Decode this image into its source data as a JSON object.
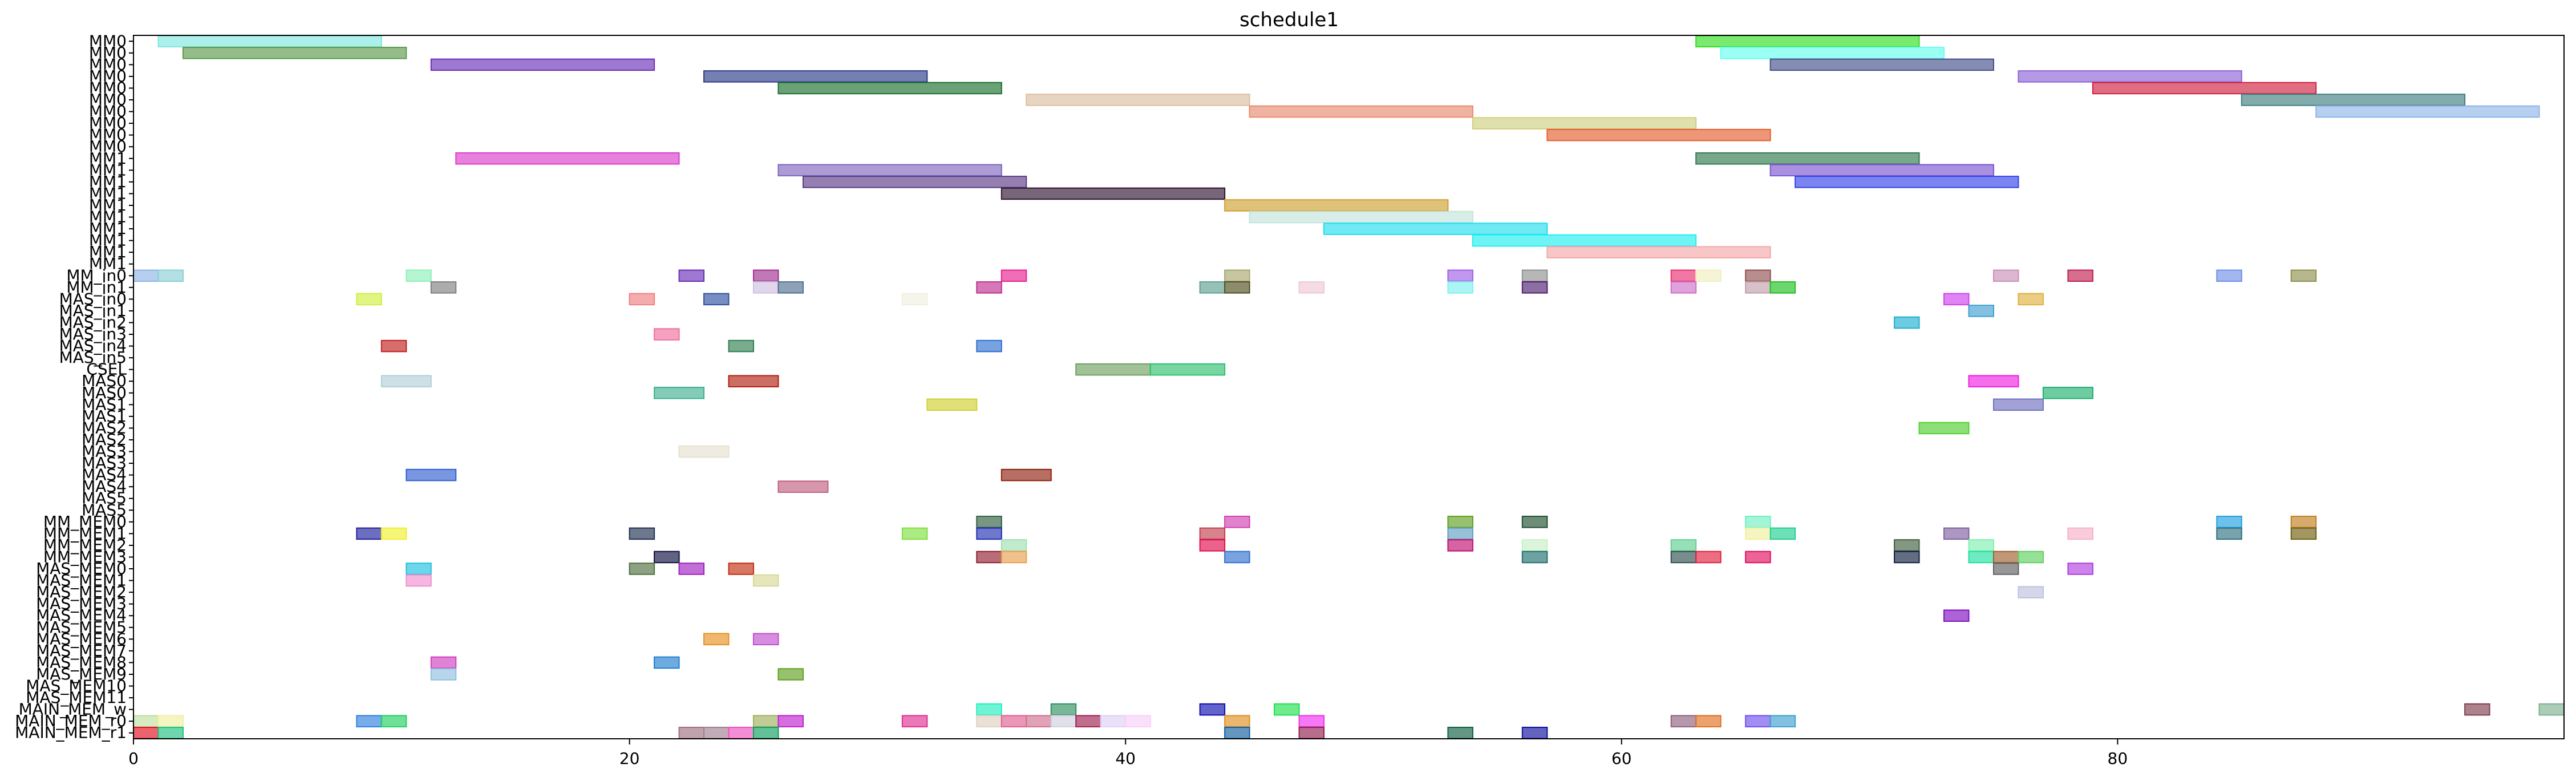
{
  "chart_data": {
    "type": "gantt",
    "title": "schedule1",
    "xlabel": "",
    "ylabel": "",
    "xlim": [
      0,
      98
    ],
    "xticks": [
      0,
      20,
      40,
      60,
      80
    ],
    "grid": false,
    "rows": [
      "MM0",
      "MM0",
      "MM0",
      "MM0",
      "MM0",
      "MM0",
      "MM0",
      "MM0",
      "MM0",
      "MM0",
      "MM1",
      "MM1",
      "MM1",
      "MM1",
      "MM1",
      "MM1",
      "MM1",
      "MM1",
      "MM1",
      "MM1",
      "MM_in0",
      "MM_in1",
      "MAS_in0",
      "MAS_in1",
      "MAS_in2",
      "MAS_in3",
      "MAS_in4",
      "MAS_in5",
      "CSEL",
      "MAS0",
      "MAS0",
      "MAS1",
      "MAS1",
      "MAS2",
      "MAS2",
      "MAS3",
      "MAS3",
      "MAS4",
      "MAS4",
      "MAS5",
      "MAS5",
      "MM_MEM0",
      "MM_MEM1",
      "MM_MEM2",
      "MM_MEM3",
      "MAS_MEM0",
      "MAS_MEM1",
      "MAS_MEM2",
      "MAS_MEM3",
      "MAS_MEM4",
      "MAS_MEM5",
      "MAS_MEM6",
      "MAS_MEM7",
      "MAS_MEM8",
      "MAS_MEM9",
      "MAS_MEM10",
      "MAS_MEM11",
      "MAIN_MEM_w",
      "MAIN_MEM_r0",
      "MAIN_MEM_r1"
    ],
    "tasks": [
      {
        "row": 0,
        "start": 1,
        "end": 10,
        "color": "#7fe6e0"
      },
      {
        "row": 0,
        "start": 63,
        "end": 72,
        "color": "#33dd22"
      },
      {
        "row": 1,
        "start": 2,
        "end": 11,
        "color": "#5a9a4c"
      },
      {
        "row": 1,
        "start": 64,
        "end": 73,
        "color": "#66ffee"
      },
      {
        "row": 2,
        "start": 12,
        "end": 21,
        "color": "#6a2fb8"
      },
      {
        "row": 2,
        "start": 66,
        "end": 75,
        "color": "#44508a"
      },
      {
        "row": 3,
        "start": 23,
        "end": 32,
        "color": "#2c3a88"
      },
      {
        "row": 3,
        "start": 76,
        "end": 85,
        "color": "#8d62d6"
      },
      {
        "row": 4,
        "start": 26,
        "end": 35,
        "color": "#1b6e2e"
      },
      {
        "row": 4,
        "start": 79,
        "end": 88,
        "color": "#d02040"
      },
      {
        "row": 5,
        "start": 36,
        "end": 45,
        "color": "#dcbf9f"
      },
      {
        "row": 5,
        "start": 85,
        "end": 94,
        "color": "#3f8080"
      },
      {
        "row": 6,
        "start": 45,
        "end": 54,
        "color": "#e98a6f"
      },
      {
        "row": 6,
        "start": 88,
        "end": 97,
        "color": "#8fb4e6"
      },
      {
        "row": 7,
        "start": 54,
        "end": 63,
        "color": "#cfcf80"
      },
      {
        "row": 8,
        "start": 57,
        "end": 66,
        "color": "#e45f30"
      },
      {
        "row": 10,
        "start": 13,
        "end": 22,
        "color": "#dc3ccd"
      },
      {
        "row": 10,
        "start": 63,
        "end": 72,
        "color": "#2f7a4f"
      },
      {
        "row": 11,
        "start": 26,
        "end": 35,
        "color": "#8066be"
      },
      {
        "row": 11,
        "start": 66,
        "end": 75,
        "color": "#7c55d0"
      },
      {
        "row": 12,
        "start": 27,
        "end": 36,
        "color": "#5a3a86"
      },
      {
        "row": 12,
        "start": 67,
        "end": 76,
        "color": "#3344e8"
      },
      {
        "row": 13,
        "start": 35,
        "end": 44,
        "color": "#2e1430"
      },
      {
        "row": 14,
        "start": 44,
        "end": 53,
        "color": "#cfa030"
      },
      {
        "row": 15,
        "start": 45,
        "end": 54,
        "color": "#c4e4dc"
      },
      {
        "row": 16,
        "start": 48,
        "end": 57,
        "color": "#22ddee"
      },
      {
        "row": 17,
        "start": 54,
        "end": 63,
        "color": "#22eef0"
      },
      {
        "row": 18,
        "start": 57,
        "end": 66,
        "color": "#f4a8a8"
      },
      {
        "row": 20,
        "start": 0,
        "end": 1,
        "color": "#8fb4e6"
      },
      {
        "row": 20,
        "start": 1,
        "end": 2,
        "color": "#88d0d4"
      },
      {
        "row": 20,
        "start": 11,
        "end": 12,
        "color": "#8ef0b8"
      },
      {
        "row": 20,
        "start": 22,
        "end": 23,
        "color": "#6a2fb8"
      },
      {
        "row": 20,
        "start": 25,
        "end": 26,
        "color": "#a03090"
      },
      {
        "row": 20,
        "start": 35,
        "end": 36,
        "color": "#e82090"
      },
      {
        "row": 20,
        "start": 44,
        "end": 45,
        "color": "#a8a870"
      },
      {
        "row": 20,
        "start": 53,
        "end": 54,
        "color": "#a060e8"
      },
      {
        "row": 20,
        "start": 56,
        "end": 57,
        "color": "#909090"
      },
      {
        "row": 20,
        "start": 62,
        "end": 63,
        "color": "#e83070"
      },
      {
        "row": 20,
        "start": 63,
        "end": 64,
        "color": "#f0f0c0"
      },
      {
        "row": 20,
        "start": 65,
        "end": 66,
        "color": "#905050"
      },
      {
        "row": 20,
        "start": 75,
        "end": 76,
        "color": "#c890b8"
      },
      {
        "row": 20,
        "start": 78,
        "end": 79,
        "color": "#c02050"
      },
      {
        "row": 20,
        "start": 84,
        "end": 85,
        "color": "#7090e8"
      },
      {
        "row": 20,
        "start": 87,
        "end": 88,
        "color": "#909050"
      },
      {
        "row": 21,
        "start": 12,
        "end": 13,
        "color": "#808080"
      },
      {
        "row": 21,
        "start": 25,
        "end": 26,
        "color": "#d0c0e0"
      },
      {
        "row": 21,
        "start": 26,
        "end": 27,
        "color": "#507090"
      },
      {
        "row": 21,
        "start": 34,
        "end": 35,
        "color": "#c03090"
      },
      {
        "row": 21,
        "start": 43,
        "end": 44,
        "color": "#60a090"
      },
      {
        "row": 21,
        "start": 44,
        "end": 45,
        "color": "#505020"
      },
      {
        "row": 21,
        "start": 47,
        "end": 48,
        "color": "#f0c8d8"
      },
      {
        "row": 21,
        "start": 53,
        "end": 54,
        "color": "#80f0f0"
      },
      {
        "row": 21,
        "start": 56,
        "end": 57,
        "color": "#502070"
      },
      {
        "row": 21,
        "start": 62,
        "end": 63,
        "color": "#d070c8"
      },
      {
        "row": 21,
        "start": 65,
        "end": 66,
        "color": "#c0a0a8"
      },
      {
        "row": 21,
        "start": 66,
        "end": 67,
        "color": "#20c020"
      },
      {
        "row": 22,
        "start": 9,
        "end": 10,
        "color": "#d0f040"
      },
      {
        "row": 22,
        "start": 20,
        "end": 21,
        "color": "#f08080"
      },
      {
        "row": 22,
        "start": 23,
        "end": 24,
        "color": "#3050a0"
      },
      {
        "row": 22,
        "start": 31,
        "end": 32,
        "color": "#f0f0e0"
      },
      {
        "row": 22,
        "start": 73,
        "end": 74,
        "color": "#d040f0"
      },
      {
        "row": 22,
        "start": 76,
        "end": 77,
        "color": "#e0b040"
      },
      {
        "row": 23,
        "start": 74,
        "end": 75,
        "color": "#40a0d0"
      },
      {
        "row": 24,
        "start": 71,
        "end": 72,
        "color": "#20b0d0"
      },
      {
        "row": 25,
        "start": 21,
        "end": 22,
        "color": "#f070a0"
      },
      {
        "row": 26,
        "start": 10,
        "end": 11,
        "color": "#c02020"
      },
      {
        "row": 26,
        "start": 24,
        "end": 25,
        "color": "#308050"
      },
      {
        "row": 26,
        "start": 34,
        "end": 35,
        "color": "#3070d0"
      },
      {
        "row": 28,
        "start": 38,
        "end": 41,
        "color": "#70a060"
      },
      {
        "row": 28,
        "start": 41,
        "end": 44,
        "color": "#30c070"
      },
      {
        "row": 29,
        "start": 10,
        "end": 12,
        "color": "#b0d0d8"
      },
      {
        "row": 29,
        "start": 24,
        "end": 26,
        "color": "#b02010"
      },
      {
        "row": 29,
        "start": 74,
        "end": 76,
        "color": "#f020e0"
      },
      {
        "row": 30,
        "start": 21,
        "end": 23,
        "color": "#40b090"
      },
      {
        "row": 30,
        "start": 77,
        "end": 79,
        "color": "#20b070"
      },
      {
        "row": 31,
        "start": 32,
        "end": 34,
        "color": "#d0d030"
      },
      {
        "row": 31,
        "start": 75,
        "end": 77,
        "color": "#7070c0"
      },
      {
        "row": 33,
        "start": 72,
        "end": 74,
        "color": "#50d030"
      },
      {
        "row": 35,
        "start": 22,
        "end": 24,
        "color": "#e8e0d0"
      },
      {
        "row": 37,
        "start": 11,
        "end": 13,
        "color": "#3060d0"
      },
      {
        "row": 37,
        "start": 35,
        "end": 37,
        "color": "#902010"
      },
      {
        "row": 38,
        "start": 26,
        "end": 28,
        "color": "#c06080"
      },
      {
        "row": 41,
        "start": 34,
        "end": 35,
        "color": "#306040"
      },
      {
        "row": 41,
        "start": 44,
        "end": 45,
        "color": "#d040b0"
      },
      {
        "row": 41,
        "start": 53,
        "end": 54,
        "color": "#60a020"
      },
      {
        "row": 41,
        "start": 56,
        "end": 57,
        "color": "#205030"
      },
      {
        "row": 41,
        "start": 65,
        "end": 66,
        "color": "#70f0c0"
      },
      {
        "row": 41,
        "start": 84,
        "end": 85,
        "color": "#20a0e0"
      },
      {
        "row": 41,
        "start": 87,
        "end": 88,
        "color": "#c08020"
      },
      {
        "row": 42,
        "start": 9,
        "end": 10,
        "color": "#2020a0"
      },
      {
        "row": 42,
        "start": 10,
        "end": 11,
        "color": "#f0f030"
      },
      {
        "row": 42,
        "start": 20,
        "end": 21,
        "color": "#203050"
      },
      {
        "row": 42,
        "start": 31,
        "end": 32,
        "color": "#80e040"
      },
      {
        "row": 42,
        "start": 34,
        "end": 35,
        "color": "#2030b0"
      },
      {
        "row": 42,
        "start": 43,
        "end": 44,
        "color": "#c04050"
      },
      {
        "row": 42,
        "start": 53,
        "end": 54,
        "color": "#60a0c0"
      },
      {
        "row": 42,
        "start": 65,
        "end": 66,
        "color": "#f0f0a0"
      },
      {
        "row": 42,
        "start": 66,
        "end": 67,
        "color": "#20d090"
      },
      {
        "row": 42,
        "start": 73,
        "end": 74,
        "color": "#8060a0"
      },
      {
        "row": 42,
        "start": 78,
        "end": 79,
        "color": "#f8b0c8"
      },
      {
        "row": 42,
        "start": 84,
        "end": 85,
        "color": "#307080"
      },
      {
        "row": 42,
        "start": 87,
        "end": 88,
        "color": "#706010"
      },
      {
        "row": 43,
        "start": 35,
        "end": 36,
        "color": "#a0e0b0"
      },
      {
        "row": 43,
        "start": 43,
        "end": 44,
        "color": "#e01050"
      },
      {
        "row": 43,
        "start": 53,
        "end": 54,
        "color": "#c01070"
      },
      {
        "row": 43,
        "start": 56,
        "end": 57,
        "color": "#c8f0c8"
      },
      {
        "row": 43,
        "start": 62,
        "end": 63,
        "color": "#60d090"
      },
      {
        "row": 43,
        "start": 71,
        "end": 72,
        "color": "#406040"
      },
      {
        "row": 43,
        "start": 74,
        "end": 75,
        "color": "#80f0b0"
      },
      {
        "row": 44,
        "start": 21,
        "end": 22,
        "color": "#101040"
      },
      {
        "row": 44,
        "start": 34,
        "end": 35,
        "color": "#902030"
      },
      {
        "row": 44,
        "start": 35,
        "end": 36,
        "color": "#e8a050"
      },
      {
        "row": 44,
        "start": 44,
        "end": 45,
        "color": "#3070d0"
      },
      {
        "row": 44,
        "start": 56,
        "end": 57,
        "color": "#207070"
      },
      {
        "row": 44,
        "start": 62,
        "end": 63,
        "color": "#305050"
      },
      {
        "row": 44,
        "start": 63,
        "end": 64,
        "color": "#e02040"
      },
      {
        "row": 44,
        "start": 65,
        "end": 66,
        "color": "#e01060"
      },
      {
        "row": 44,
        "start": 71,
        "end": 72,
        "color": "#102040"
      },
      {
        "row": 44,
        "start": 74,
        "end": 75,
        "color": "#20e0a0"
      },
      {
        "row": 44,
        "start": 75,
        "end": 76,
        "color": "#a06030"
      },
      {
        "row": 44,
        "start": 76,
        "end": 77,
        "color": "#60d060"
      },
      {
        "row": 45,
        "start": 11,
        "end": 12,
        "color": "#20c0e0"
      },
      {
        "row": 45,
        "start": 20,
        "end": 21,
        "color": "#507040"
      },
      {
        "row": 45,
        "start": 22,
        "end": 23,
        "color": "#a020c0"
      },
      {
        "row": 45,
        "start": 24,
        "end": 25,
        "color": "#c03010"
      },
      {
        "row": 45,
        "start": 75,
        "end": 76,
        "color": "#606060"
      },
      {
        "row": 45,
        "start": 78,
        "end": 79,
        "color": "#b040e0"
      },
      {
        "row": 46,
        "start": 11,
        "end": 12,
        "color": "#f090d0"
      },
      {
        "row": 46,
        "start": 25,
        "end": 26,
        "color": "#d8d898"
      },
      {
        "row": 47,
        "start": 76,
        "end": 77,
        "color": "#c0c0e0"
      },
      {
        "row": 49,
        "start": 73,
        "end": 74,
        "color": "#8010c0"
      },
      {
        "row": 51,
        "start": 23,
        "end": 24,
        "color": "#e89020"
      },
      {
        "row": 51,
        "start": 25,
        "end": 26,
        "color": "#c050d0"
      },
      {
        "row": 53,
        "start": 12,
        "end": 13,
        "color": "#d040c0"
      },
      {
        "row": 53,
        "start": 21,
        "end": 22,
        "color": "#2080d0"
      },
      {
        "row": 54,
        "start": 12,
        "end": 13,
        "color": "#90c0e0"
      },
      {
        "row": 54,
        "start": 26,
        "end": 27,
        "color": "#60a020"
      },
      {
        "row": 57,
        "start": 34,
        "end": 35,
        "color": "#20f0c0"
      },
      {
        "row": 57,
        "start": 37,
        "end": 38,
        "color": "#309060"
      },
      {
        "row": 57,
        "start": 43,
        "end": 44,
        "color": "#1010b0"
      },
      {
        "row": 57,
        "start": 46,
        "end": 47,
        "color": "#20e050"
      },
      {
        "row": 57,
        "start": 94,
        "end": 95,
        "color": "#804050"
      },
      {
        "row": 57,
        "start": 97,
        "end": 98,
        "color": "#80b090"
      },
      {
        "row": 58,
        "start": 0,
        "end": 1,
        "color": "#c0e0a0"
      },
      {
        "row": 58,
        "start": 1,
        "end": 2,
        "color": "#f0f0a0"
      },
      {
        "row": 58,
        "start": 9,
        "end": 10,
        "color": "#3080e0"
      },
      {
        "row": 58,
        "start": 10,
        "end": 11,
        "color": "#20d060"
      },
      {
        "row": 58,
        "start": 25,
        "end": 26,
        "color": "#a0b060"
      },
      {
        "row": 58,
        "start": 26,
        "end": 27,
        "color": "#c020d0"
      },
      {
        "row": 58,
        "start": 31,
        "end": 32,
        "color": "#e03090"
      },
      {
        "row": 58,
        "start": 34,
        "end": 35,
        "color": "#e0d0c0"
      },
      {
        "row": 58,
        "start": 35,
        "end": 36,
        "color": "#e06090"
      },
      {
        "row": 58,
        "start": 36,
        "end": 37,
        "color": "#d07090"
      },
      {
        "row": 58,
        "start": 37,
        "end": 38,
        "color": "#d0d0e0"
      },
      {
        "row": 58,
        "start": 38,
        "end": 39,
        "color": "#a02050"
      },
      {
        "row": 58,
        "start": 39,
        "end": 40,
        "color": "#e0d0f8"
      },
      {
        "row": 58,
        "start": 40,
        "end": 41,
        "color": "#f8d0f8"
      },
      {
        "row": 58,
        "start": 44,
        "end": 45,
        "color": "#e09020"
      },
      {
        "row": 58,
        "start": 47,
        "end": 48,
        "color": "#f030f0"
      },
      {
        "row": 58,
        "start": 62,
        "end": 63,
        "color": "#906080"
      },
      {
        "row": 58,
        "start": 63,
        "end": 64,
        "color": "#e07020"
      },
      {
        "row": 58,
        "start": 65,
        "end": 66,
        "color": "#7050f0"
      },
      {
        "row": 58,
        "start": 66,
        "end": 67,
        "color": "#40a0d0"
      },
      {
        "row": 59,
        "start": 0,
        "end": 1,
        "color": "#e01020"
      },
      {
        "row": 59,
        "start": 1,
        "end": 2,
        "color": "#20c080"
      },
      {
        "row": 59,
        "start": 22,
        "end": 23,
        "color": "#a07080"
      },
      {
        "row": 59,
        "start": 23,
        "end": 24,
        "color": "#a08090"
      },
      {
        "row": 59,
        "start": 24,
        "end": 25,
        "color": "#f050c0"
      },
      {
        "row": 59,
        "start": 25,
        "end": 26,
        "color": "#10a060"
      },
      {
        "row": 59,
        "start": 44,
        "end": 45,
        "color": "#1060a0"
      },
      {
        "row": 59,
        "start": 47,
        "end": 48,
        "color": "#902050"
      },
      {
        "row": 59,
        "start": 53,
        "end": 54,
        "color": "#106040"
      },
      {
        "row": 59,
        "start": 56,
        "end": 57,
        "color": "#1010a0"
      }
    ]
  }
}
